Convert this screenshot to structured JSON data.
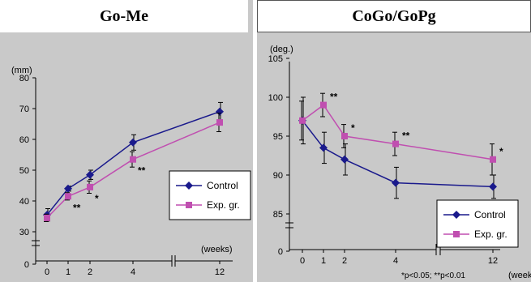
{
  "chart_data": [
    {
      "type": "line",
      "title": "Go-Me",
      "ylabel": "(mm)",
      "xlabel": "(weeks)",
      "y_ticks": [
        "80",
        "70",
        "60",
        "50",
        "40",
        "30",
        "0"
      ],
      "x_ticks": [
        "0",
        "1",
        "2",
        "4",
        "12"
      ],
      "x": [
        0,
        1,
        2,
        4,
        12
      ],
      "ylim": [
        30,
        80
      ],
      "axis_break": true,
      "grid": false,
      "legend_position": "right",
      "series": [
        {
          "name": "Control",
          "values": [
            35.5,
            44,
            48.5,
            59,
            69
          ],
          "errors": [
            2,
            0.8,
            1.5,
            2.5,
            3
          ],
          "color": "#1a1a8c",
          "marker": "diamond"
        },
        {
          "name": "Exp. gr.",
          "values": [
            34.5,
            41.5,
            44.5,
            53.5,
            65.5
          ],
          "errors": [
            1.2,
            1.2,
            2,
            2.5,
            3
          ],
          "color": "#c04fb0",
          "marker": "square"
        }
      ],
      "significance": [
        "",
        "**",
        "*",
        "**",
        ""
      ]
    },
    {
      "type": "line",
      "title": "CoGo/GoPg",
      "ylabel": "(deg.)",
      "xlabel": "(weeks",
      "y_ticks": [
        "105",
        "100",
        "95",
        "90",
        "85",
        "0"
      ],
      "x_ticks": [
        "0",
        "1",
        "2",
        "4",
        "12"
      ],
      "x": [
        0,
        1,
        2,
        4,
        12
      ],
      "ylim": [
        85,
        105
      ],
      "axis_break": true,
      "grid": false,
      "legend_position": "bottom-right",
      "series": [
        {
          "name": "Control",
          "values": [
            97,
            93.5,
            92,
            89,
            88.5
          ],
          "errors": [
            3,
            2,
            2,
            2,
            1.5
          ],
          "color": "#1a1a8c",
          "marker": "diamond"
        },
        {
          "name": "Exp. gr.",
          "values": [
            97,
            99,
            95,
            94,
            92
          ],
          "errors": [
            2.5,
            1.5,
            1.5,
            1.5,
            2
          ],
          "color": "#c04fb0",
          "marker": "square"
        }
      ],
      "significance": [
        "",
        "**",
        "*",
        "**",
        "*"
      ],
      "footnote": "*p<0.05; **p<0.01"
    }
  ]
}
